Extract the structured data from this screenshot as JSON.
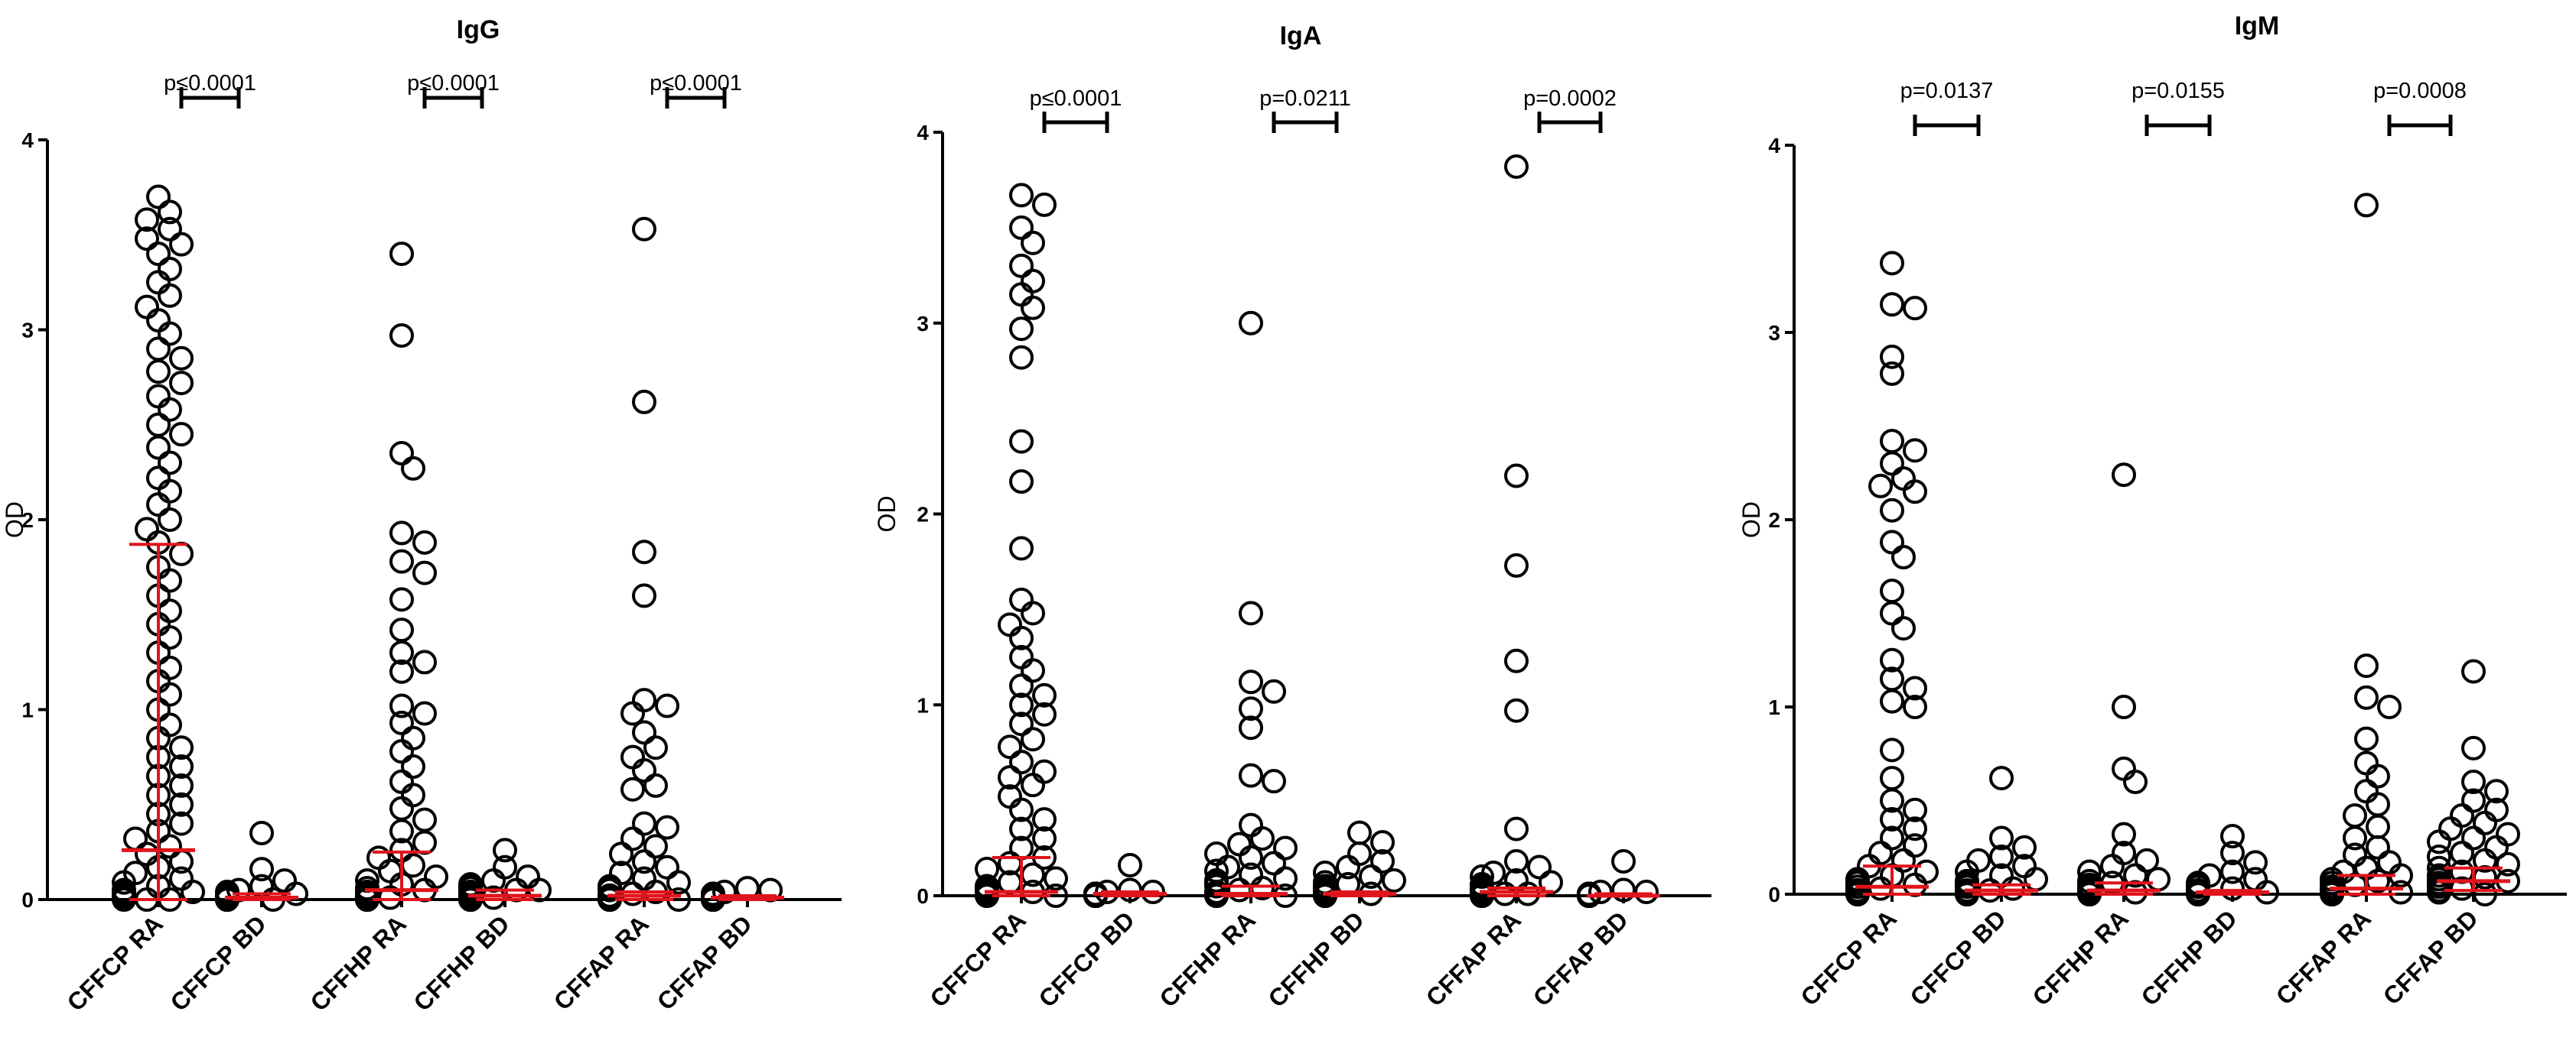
{
  "colors": {
    "points": "#000000",
    "axis": "#000000",
    "summary": "#e0141c"
  },
  "chart_data": [
    {
      "type": "scatter",
      "title": "IgG",
      "xlabel": "",
      "ylabel": "OD",
      "ylim": [
        0,
        4
      ],
      "yticks": [
        "0",
        "1",
        "2",
        "3",
        "4"
      ],
      "categories": [
        "CFFCP RA",
        "CFFCP BD",
        "CFFHP RA",
        "CFFHP BD",
        "CFFAP RA",
        "CFFAP BD"
      ],
      "series": [
        {
          "name": "CFFCP RA",
          "median": 0.26,
          "low": 0.0,
          "high": 1.87,
          "values": [
            3.7,
            3.62,
            3.58,
            3.53,
            3.48,
            3.45,
            3.4,
            3.32,
            3.25,
            3.18,
            3.12,
            3.05,
            2.98,
            2.9,
            2.85,
            2.78,
            2.72,
            2.65,
            2.58,
            2.5,
            2.45,
            2.38,
            2.3,
            2.22,
            2.15,
            2.08,
            2.0,
            1.95,
            1.88,
            1.82,
            1.75,
            1.68,
            1.6,
            1.52,
            1.45,
            1.38,
            1.3,
            1.22,
            1.15,
            1.08,
            1.0,
            0.92,
            0.85,
            0.8,
            0.75,
            0.7,
            0.65,
            0.6,
            0.55,
            0.5,
            0.45,
            0.4,
            0.36,
            0.32,
            0.28,
            0.24,
            0.2,
            0.17,
            0.14,
            0.11,
            0.09,
            0.07,
            0.05,
            0.04,
            0.03,
            0.02,
            0.01,
            0.02,
            0.03,
            0.01,
            0.04,
            0.02,
            0.01,
            0.03,
            0.02,
            0.01,
            0.02,
            0.01,
            0.0,
            0.01,
            0.02,
            0.0,
            0.01,
            0.0
          ]
        },
        {
          "name": "CFFCP BD",
          "median": 0.01,
          "low": 0.0,
          "high": 0.03,
          "values": [
            0.35,
            0.16,
            0.1,
            0.07,
            0.05,
            0.04,
            0.03,
            0.03,
            0.02,
            0.02,
            0.02,
            0.01,
            0.01,
            0.01,
            0.01,
            0.0,
            0.0,
            0.0,
            0.0,
            0.01,
            0.02,
            0.0,
            0.01,
            0.0,
            0.01,
            0.0
          ]
        },
        {
          "name": "CFFHP RA",
          "median": 0.05,
          "low": 0.0,
          "high": 0.25,
          "values": [
            3.4,
            2.97,
            2.35,
            2.27,
            1.93,
            1.88,
            1.78,
            1.72,
            1.58,
            1.42,
            1.3,
            1.25,
            1.2,
            1.02,
            0.98,
            0.93,
            0.85,
            0.78,
            0.7,
            0.62,
            0.55,
            0.48,
            0.42,
            0.36,
            0.3,
            0.26,
            0.22,
            0.18,
            0.15,
            0.12,
            0.1,
            0.08,
            0.06,
            0.05,
            0.04,
            0.03,
            0.02,
            0.01,
            0.02,
            0.03,
            0.01,
            0.02,
            0.0,
            0.01,
            0.02,
            0.0,
            0.01,
            0.0,
            0.01,
            0.0
          ]
        },
        {
          "name": "CFFHP BD",
          "median": 0.02,
          "low": 0.0,
          "high": 0.05,
          "values": [
            0.26,
            0.17,
            0.12,
            0.1,
            0.08,
            0.07,
            0.06,
            0.05,
            0.05,
            0.04,
            0.04,
            0.03,
            0.03,
            0.02,
            0.02,
            0.02,
            0.01,
            0.01,
            0.01,
            0.0,
            0.01,
            0.0,
            0.02,
            0.01,
            0.0,
            0.01,
            0.0,
            0.01
          ]
        },
        {
          "name": "CFFAP RA",
          "median": 0.02,
          "low": 0.0,
          "high": 0.04,
          "values": [
            3.53,
            2.62,
            1.83,
            1.6,
            1.05,
            1.02,
            0.98,
            0.88,
            0.8,
            0.75,
            0.68,
            0.6,
            0.58,
            0.4,
            0.38,
            0.32,
            0.28,
            0.24,
            0.2,
            0.17,
            0.14,
            0.11,
            0.09,
            0.07,
            0.06,
            0.05,
            0.04,
            0.03,
            0.02,
            0.01,
            0.02,
            0.01,
            0.0,
            0.01,
            0.02,
            0.0,
            0.01,
            0.0,
            0.01,
            0.0
          ]
        },
        {
          "name": "CFFAP BD",
          "median": 0.01,
          "low": 0.0,
          "high": 0.02,
          "values": [
            0.06,
            0.05,
            0.04,
            0.03,
            0.03,
            0.02,
            0.02,
            0.02,
            0.01,
            0.01,
            0.01,
            0.01,
            0.0,
            0.0,
            0.0,
            0.01,
            0.0,
            0.01,
            0.0,
            0.0,
            0.01,
            0.0
          ]
        }
      ],
      "comparisons": [
        {
          "groups": [
            "CFFCP RA",
            "CFFCP BD"
          ],
          "label": "p≤0.0001"
        },
        {
          "groups": [
            "CFFHP RA",
            "CFFHP BD"
          ],
          "label": "p≤0.0001"
        },
        {
          "groups": [
            "CFFAP RA",
            "CFFAP BD"
          ],
          "label": "p≤0.0001"
        }
      ]
    },
    {
      "type": "scatter",
      "title": "IgA",
      "xlabel": "",
      "ylabel": "OD",
      "ylim": [
        0,
        4
      ],
      "yticks": [
        "0",
        "1",
        "2",
        "3",
        "4"
      ],
      "categories": [
        "CFFCP RA",
        "CFFCP BD",
        "CFFHP RA",
        "CFFHP BD",
        "CFFAP RA",
        "CFFAP BD"
      ],
      "series": [
        {
          "name": "CFFCP RA",
          "median": 0.02,
          "low": 0.0,
          "high": 0.2,
          "values": [
            3.67,
            3.62,
            3.5,
            3.42,
            3.3,
            3.22,
            3.15,
            3.08,
            2.97,
            2.82,
            2.38,
            2.17,
            1.82,
            1.55,
            1.48,
            1.42,
            1.35,
            1.25,
            1.18,
            1.1,
            1.05,
            1.0,
            0.95,
            0.9,
            0.82,
            0.78,
            0.7,
            0.65,
            0.62,
            0.58,
            0.52,
            0.45,
            0.4,
            0.35,
            0.3,
            0.25,
            0.2,
            0.17,
            0.14,
            0.11,
            0.09,
            0.07,
            0.05,
            0.04,
            0.03,
            0.02,
            0.01,
            0.02,
            0.01,
            0.0,
            0.01,
            0.0,
            0.02,
            0.01,
            0.0
          ]
        },
        {
          "name": "CFFCP BD",
          "median": 0.01,
          "low": 0.0,
          "high": 0.02,
          "values": [
            0.16,
            0.03,
            0.02,
            0.02,
            0.01,
            0.01,
            0.01,
            0.01,
            0.0,
            0.0,
            0.0,
            0.0,
            0.01,
            0.0,
            0.01,
            0.0,
            0.0
          ]
        },
        {
          "name": "CFFHP RA",
          "median": 0.01,
          "low": 0.0,
          "high": 0.05,
          "values": [
            3.0,
            1.48,
            1.12,
            1.07,
            0.98,
            0.88,
            0.63,
            0.6,
            0.37,
            0.3,
            0.27,
            0.25,
            0.22,
            0.2,
            0.17,
            0.15,
            0.13,
            0.11,
            0.09,
            0.08,
            0.07,
            0.06,
            0.05,
            0.04,
            0.03,
            0.02,
            0.01,
            0.02,
            0.01,
            0.0,
            0.01,
            0.0,
            0.01,
            0.0
          ]
        },
        {
          "name": "CFFHP BD",
          "median": 0.01,
          "low": 0.0,
          "high": 0.02,
          "values": [
            0.33,
            0.28,
            0.22,
            0.18,
            0.15,
            0.12,
            0.1,
            0.08,
            0.07,
            0.06,
            0.05,
            0.04,
            0.03,
            0.02,
            0.02,
            0.01,
            0.01,
            0.0,
            0.01,
            0.0,
            0.01,
            0.0
          ]
        },
        {
          "name": "CFFAP RA",
          "median": 0.02,
          "low": 0.0,
          "high": 0.04,
          "values": [
            3.82,
            2.2,
            1.73,
            1.23,
            0.97,
            0.35,
            0.18,
            0.15,
            0.12,
            0.1,
            0.08,
            0.07,
            0.06,
            0.05,
            0.04,
            0.03,
            0.02,
            0.01,
            0.02,
            0.01,
            0.0,
            0.01,
            0.0,
            0.01,
            0.0
          ]
        },
        {
          "name": "CFFAP BD",
          "median": 0.0,
          "low": 0.0,
          "high": 0.01,
          "values": [
            0.18,
            0.03,
            0.02,
            0.02,
            0.01,
            0.01,
            0.01,
            0.0,
            0.0,
            0.0,
            0.0,
            0.01,
            0.0,
            0.0,
            0.01,
            0.0
          ]
        }
      ],
      "comparisons": [
        {
          "groups": [
            "CFFCP RA",
            "CFFCP BD"
          ],
          "label": "p≤0.0001"
        },
        {
          "groups": [
            "CFFHP RA",
            "CFFHP BD"
          ],
          "label": "p=0.0211"
        },
        {
          "groups": [
            "CFFAP RA",
            "CFFAP BD"
          ],
          "label": "p=0.0002"
        }
      ]
    },
    {
      "type": "scatter",
      "title": "IgM",
      "xlabel": "",
      "ylabel": "OD",
      "ylim": [
        0,
        4
      ],
      "yticks": [
        "0",
        "1",
        "2",
        "3",
        "4"
      ],
      "categories": [
        "CFFCP RA",
        "CFFCP BD",
        "CFFHP RA",
        "CFFHP BD",
        "CFFAP RA",
        "CFFAP BD"
      ],
      "series": [
        {
          "name": "CFFCP RA",
          "median": 0.04,
          "low": 0.0,
          "high": 0.15,
          "values": [
            3.37,
            3.15,
            3.13,
            2.87,
            2.78,
            2.42,
            2.37,
            2.3,
            2.22,
            2.18,
            2.15,
            2.05,
            1.88,
            1.8,
            1.62,
            1.5,
            1.42,
            1.25,
            1.15,
            1.1,
            1.03,
            1.0,
            0.77,
            0.62,
            0.5,
            0.45,
            0.4,
            0.35,
            0.3,
            0.26,
            0.22,
            0.18,
            0.15,
            0.12,
            0.1,
            0.08,
            0.07,
            0.06,
            0.05,
            0.04,
            0.03,
            0.02,
            0.01,
            0.02,
            0.01,
            0.0,
            0.01,
            0.0,
            0.02,
            0.01
          ]
        },
        {
          "name": "CFFCP BD",
          "median": 0.02,
          "low": 0.0,
          "high": 0.05,
          "values": [
            0.62,
            0.3,
            0.25,
            0.2,
            0.18,
            0.15,
            0.12,
            0.1,
            0.08,
            0.07,
            0.06,
            0.05,
            0.04,
            0.03,
            0.02,
            0.02,
            0.01,
            0.01,
            0.0,
            0.01,
            0.0,
            0.01,
            0.0
          ]
        },
        {
          "name": "CFFHP RA",
          "median": 0.02,
          "low": 0.0,
          "high": 0.06,
          "values": [
            2.24,
            1.0,
            0.67,
            0.6,
            0.32,
            0.22,
            0.18,
            0.15,
            0.12,
            0.1,
            0.08,
            0.07,
            0.06,
            0.05,
            0.04,
            0.03,
            0.02,
            0.01,
            0.02,
            0.01,
            0.0,
            0.01,
            0.0,
            0.01
          ]
        },
        {
          "name": "CFFHP BD",
          "median": 0.01,
          "low": 0.0,
          "high": 0.02,
          "values": [
            0.31,
            0.22,
            0.17,
            0.12,
            0.1,
            0.08,
            0.06,
            0.05,
            0.04,
            0.03,
            0.02,
            0.02,
            0.01,
            0.01,
            0.0,
            0.01,
            0.0
          ]
        },
        {
          "name": "CFFAP RA",
          "median": 0.03,
          "low": 0.0,
          "high": 0.1,
          "values": [
            3.68,
            1.22,
            1.05,
            1.0,
            0.83,
            0.7,
            0.63,
            0.55,
            0.48,
            0.42,
            0.36,
            0.3,
            0.25,
            0.21,
            0.17,
            0.14,
            0.12,
            0.1,
            0.08,
            0.07,
            0.06,
            0.05,
            0.04,
            0.03,
            0.02,
            0.01,
            0.02,
            0.01,
            0.0,
            0.01,
            0.0
          ]
        },
        {
          "name": "CFFAP BD",
          "median": 0.07,
          "low": 0.02,
          "high": 0.14,
          "values": [
            1.19,
            0.78,
            0.6,
            0.55,
            0.5,
            0.45,
            0.42,
            0.38,
            0.35,
            0.32,
            0.3,
            0.28,
            0.25,
            0.22,
            0.2,
            0.18,
            0.16,
            0.14,
            0.12,
            0.1,
            0.09,
            0.08,
            0.07,
            0.06,
            0.05,
            0.04,
            0.03,
            0.02,
            0.01,
            0.02,
            0.01,
            0.0
          ]
        }
      ],
      "comparisons": [
        {
          "groups": [
            "CFFCP RA",
            "CFFCP BD"
          ],
          "label": "p=0.0137"
        },
        {
          "groups": [
            "CFFHP RA",
            "CFFHP BD"
          ],
          "label": "p=0.0155"
        },
        {
          "groups": [
            "CFFAP RA",
            "CFFAP BD"
          ],
          "label": "p=0.0008"
        }
      ]
    }
  ]
}
